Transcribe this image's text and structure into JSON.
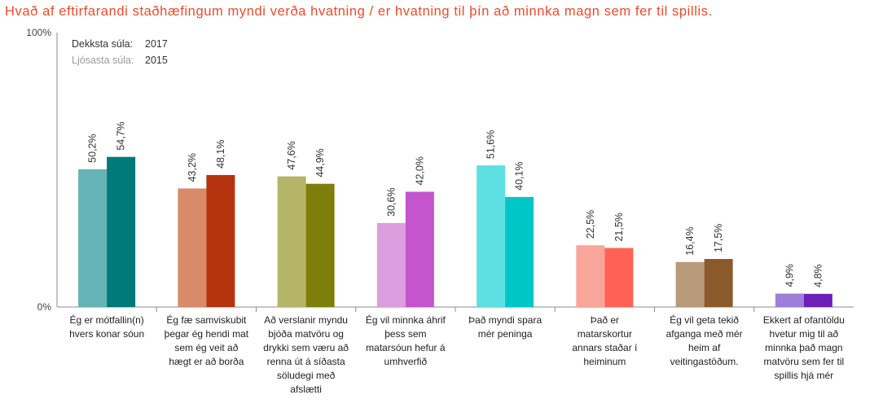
{
  "title": "Hvað af eftirfarandi staðhæfingum myndi verða hvatning / er hvatning til þín að minnka magn sem fer til spillis.",
  "legend": {
    "dark_label": "Dekksta súla:",
    "dark_value": "2017",
    "light_label": "Ljósasta súla:",
    "light_value": "2015"
  },
  "chart_data": {
    "type": "bar",
    "title": "Hvað af eftirfarandi staðhæfingum myndi verða hvatning / er hvatning til þín að minnka magn sem fer til spillis.",
    "xlabel": "",
    "ylabel": "",
    "ylim": [
      0,
      100
    ],
    "yticks": [
      "0%",
      "100%"
    ],
    "grid": false,
    "legend_position": "top-left",
    "categories": [
      [
        "Ég er mótfallin(n)",
        "hvers konar sóun"
      ],
      [
        "Ég fæ samviskubit",
        "þegar ég hendi mat",
        "sem ég veit að",
        "hægt er að borða"
      ],
      [
        "Að verslanir myndu",
        "bjóða matvöru og",
        "drykki sem væru að",
        "renna út á síðasta",
        "söludegi með",
        "afslætti"
      ],
      [
        "Ég vil minnka áhrif",
        "þess sem",
        "matarsóun hefur á",
        "umhverfið"
      ],
      [
        "Það myndi spara",
        "mér peninga"
      ],
      [
        "Það er",
        "matarskortur",
        "annars staðar í",
        "heiminum"
      ],
      [
        "Ég vil geta tekið",
        "afganga með mér",
        "heim af",
        "veitingastöðum."
      ],
      [
        "Ekkert af ofantöldu",
        "hvetur mig til að",
        "minnka það magn",
        "matvöru sem fer til",
        "spillis hjá mér"
      ]
    ],
    "series": [
      {
        "name": "2015",
        "values": [
          50.2,
          43.2,
          47.6,
          30.6,
          51.6,
          22.5,
          16.4,
          4.9
        ],
        "labels": [
          "50,2%",
          "43,2%",
          "47,6%",
          "30,6%",
          "51,6%",
          "22,5%",
          "16,4%",
          "4,9%"
        ]
      },
      {
        "name": "2017",
        "values": [
          54.7,
          48.1,
          44.9,
          42.0,
          40.1,
          21.5,
          17.5,
          4.8
        ],
        "labels": [
          "54,7%",
          "48,1%",
          "44,9%",
          "42,0%",
          "40,1%",
          "21,5%",
          "17,5%",
          "4,8%"
        ]
      }
    ],
    "colors": [
      {
        "light": "#64b3b5",
        "dark": "#00797a"
      },
      {
        "light": "#d98a68",
        "dark": "#b63310"
      },
      {
        "light": "#b4b566",
        "dark": "#7e7e0b"
      },
      {
        "light": "#dc9ddf",
        "dark": "#c455cc"
      },
      {
        "light": "#5ee0e2",
        "dark": "#00c6c6"
      },
      {
        "light": "#f8a59a",
        "dark": "#ff6254"
      },
      {
        "light": "#b89a7b",
        "dark": "#8b5a2b"
      },
      {
        "light": "#9d7fd9",
        "dark": "#6d1fb8"
      }
    ]
  }
}
